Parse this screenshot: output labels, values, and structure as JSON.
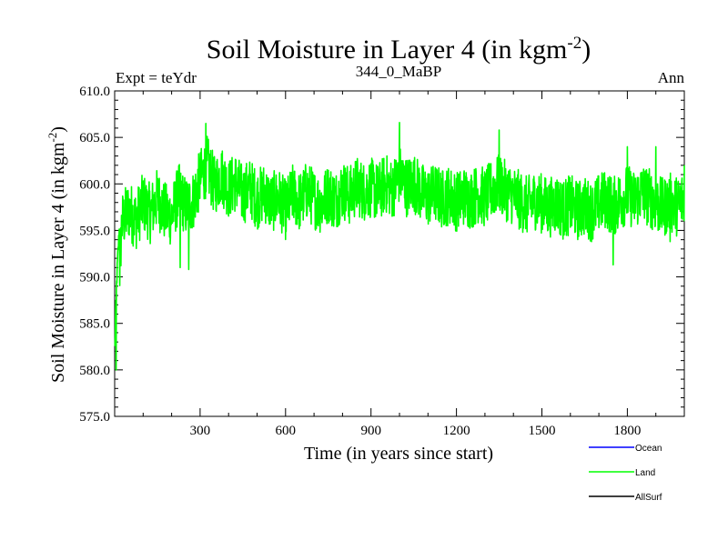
{
  "chart_data": {
    "type": "line",
    "title": "Soil Moisture in Layer 4 (in kgm",
    "title_sup": "-2",
    "title_close": ")",
    "subtitle_left": "Expt = teYdr",
    "subtitle_center": "344_0_MaBP",
    "subtitle_right": "Ann",
    "xlabel": "Time (in years since start)",
    "ylabel": "Soil Moisture in Layer 4 (in kgm",
    "ylabel_sup": "-2",
    "ylabel_close": ")",
    "xlim": [
      0,
      2000
    ],
    "ylim": [
      575,
      610
    ],
    "xticks": [
      300,
      600,
      900,
      1200,
      1500,
      1800
    ],
    "xtick_labels": [
      "300",
      "600",
      "900",
      "1200",
      "1500",
      "1800"
    ],
    "yticks": [
      575,
      580,
      585,
      590,
      595,
      600,
      605,
      610
    ],
    "ytick_labels": [
      "575.0",
      "580.0",
      "585.0",
      "590.0",
      "595.0",
      "600.0",
      "605.0",
      "610.0"
    ],
    "x_minor_step": 100,
    "y_minor_step": 1,
    "series": [
      {
        "name": "Ocean",
        "color": "#0000ff",
        "values": []
      },
      {
        "name": "Land",
        "color": "#00ff00",
        "x_step": 25,
        "x": [
          0,
          25,
          50,
          75,
          100,
          125,
          150,
          175,
          200,
          225,
          250,
          275,
          300,
          325,
          350,
          375,
          400,
          425,
          450,
          475,
          500,
          525,
          550,
          575,
          600,
          625,
          650,
          675,
          700,
          725,
          750,
          775,
          800,
          825,
          850,
          875,
          900,
          925,
          950,
          975,
          1000,
          1025,
          1050,
          1075,
          1100,
          1125,
          1150,
          1175,
          1200,
          1225,
          1250,
          1275,
          1300,
          1325,
          1350,
          1375,
          1400,
          1425,
          1450,
          1475,
          1500,
          1525,
          1550,
          1575,
          1600,
          1625,
          1650,
          1675,
          1700,
          1725,
          1750,
          1775,
          1800,
          1825,
          1850,
          1875,
          1900,
          1925,
          1950,
          1975,
          2000
        ],
        "values": [
          578.5,
          595.8,
          597.2,
          596.1,
          598.0,
          596.8,
          598.5,
          597.0,
          596.5,
          599.0,
          597.5,
          598.2,
          600.5,
          602.0,
          599.8,
          601.0,
          599.5,
          600.2,
          598.8,
          599.6,
          598.3,
          599.1,
          597.9,
          598.6,
          597.2,
          598.9,
          598.0,
          599.3,
          598.4,
          597.8,
          599.0,
          598.2,
          599.4,
          598.7,
          599.8,
          599.2,
          599.6,
          599.0,
          600.1,
          599.4,
          601.0,
          599.7,
          600.2,
          599.1,
          598.6,
          599.0,
          598.4,
          598.8,
          598.1,
          598.7,
          598.3,
          599.0,
          598.5,
          599.4,
          600.0,
          599.2,
          598.8,
          598.1,
          597.6,
          598.3,
          597.9,
          597.4,
          598.0,
          597.2,
          597.8,
          597.1,
          597.6,
          597.0,
          597.9,
          598.4,
          597.5,
          598.3,
          598.9,
          598.2,
          599.1,
          598.6,
          597.9,
          597.4,
          598.0,
          597.6,
          598.5
        ],
        "spikes": [
          [
            5,
            580.0
          ],
          [
            230,
            591.0
          ],
          [
            260,
            590.8
          ],
          [
            320,
            606.5
          ],
          [
            1000,
            606.6
          ],
          [
            1350,
            605.8
          ],
          [
            1750,
            591.3
          ],
          [
            1800,
            604.0
          ],
          [
            1900,
            604.0
          ],
          [
            1950,
            593.8
          ],
          [
            2000,
            602.0
          ]
        ]
      },
      {
        "name": "AllSurf",
        "color": "#000000",
        "values": []
      }
    ],
    "legend_position": "bottom-right",
    "grid": false
  }
}
